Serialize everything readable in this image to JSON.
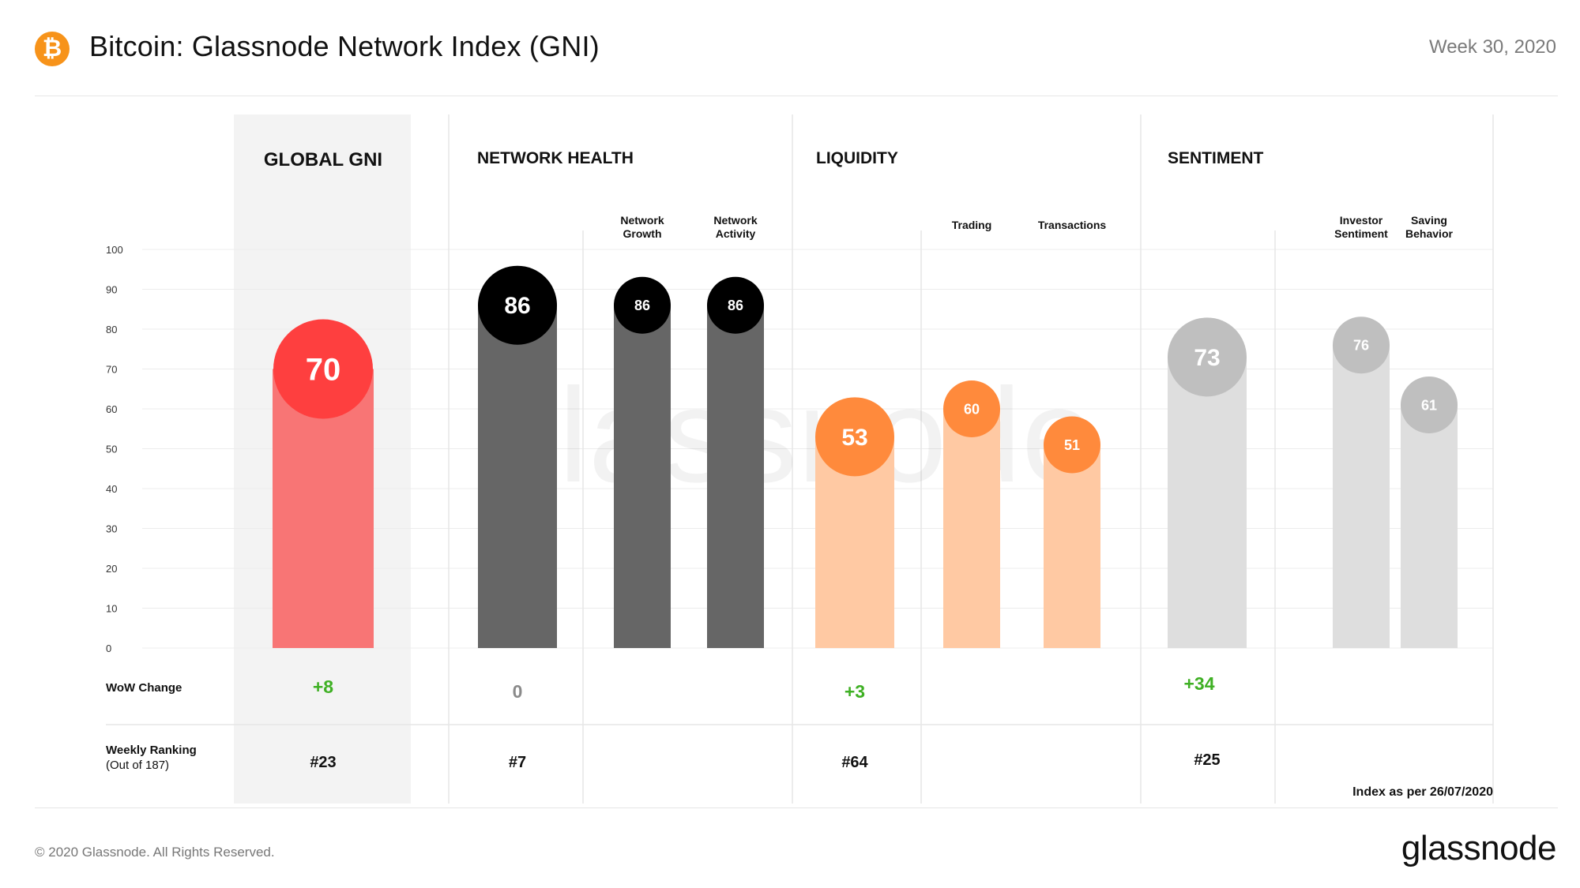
{
  "header": {
    "logo_glyph": "₿",
    "title": "Bitcoin: Glassnode Network Index (GNI)",
    "date": "Week 30, 2020"
  },
  "footer": {
    "copyright": "© 2020 Glassnode. All Rights Reserved.",
    "brand": "glassnode"
  },
  "watermark": "glassnode",
  "colors": {
    "global_bar": "#f87575",
    "global_bubble": "#fe3f3f",
    "health_bar": "#666666",
    "health_bubble": "#000000",
    "liquidity_bar": "#ffc9a3",
    "liquidity_bubble": "#ff8a3c",
    "sentiment_bar": "#dedede",
    "sentiment_bubble": "#bfbfbf",
    "positive_change": "#3fb024",
    "neutral_change": "#8a8a8a",
    "global_panel": "#f3f3f3"
  },
  "chart_data": {
    "type": "bar",
    "ylim": [
      0,
      100
    ],
    "yticks": [
      0,
      10,
      20,
      30,
      40,
      50,
      60,
      70,
      80,
      90,
      100
    ],
    "groups": [
      {
        "name": "GLOBAL GNI",
        "wow_change": "+8",
        "weekly_ranking": "#23"
      },
      {
        "name": "NETWORK HEALTH",
        "wow_change": "0",
        "weekly_ranking": "#7"
      },
      {
        "name": "LIQUIDITY",
        "wow_change": "+3",
        "weekly_ranking": "#64"
      },
      {
        "name": "SENTIMENT",
        "wow_change": "+34",
        "weekly_ranking": "#25"
      }
    ],
    "bars": [
      {
        "group": "GLOBAL GNI",
        "label": "",
        "value": 70,
        "kind": "main",
        "color_key": "global"
      },
      {
        "group": "NETWORK HEALTH",
        "label": "",
        "value": 86,
        "kind": "main",
        "color_key": "health"
      },
      {
        "group": "NETWORK HEALTH",
        "label": "Network Growth",
        "value": 86,
        "kind": "sub",
        "color_key": "health"
      },
      {
        "group": "NETWORK HEALTH",
        "label": "Network Activity",
        "value": 86,
        "kind": "sub",
        "color_key": "health"
      },
      {
        "group": "LIQUIDITY",
        "label": "",
        "value": 53,
        "kind": "main",
        "color_key": "liquidity"
      },
      {
        "group": "LIQUIDITY",
        "label": "Trading",
        "value": 60,
        "kind": "sub",
        "color_key": "liquidity"
      },
      {
        "group": "LIQUIDITY",
        "label": "Transactions",
        "value": 51,
        "kind": "sub",
        "color_key": "liquidity"
      },
      {
        "group": "SENTIMENT",
        "label": "",
        "value": 73,
        "kind": "main",
        "color_key": "sentiment"
      },
      {
        "group": "SENTIMENT",
        "label": "Investor Sentiment",
        "value": 76,
        "kind": "sub",
        "color_key": "sentiment"
      },
      {
        "group": "SENTIMENT",
        "label": "Saving Behavior",
        "value": 61,
        "kind": "sub",
        "color_key": "sentiment"
      }
    ],
    "row_labels": {
      "wow": "WoW  Change",
      "ranking": "Weekly Ranking",
      "ranking_note": "(Out of 187)"
    },
    "index_note": "Index as per 26/07/2020"
  }
}
